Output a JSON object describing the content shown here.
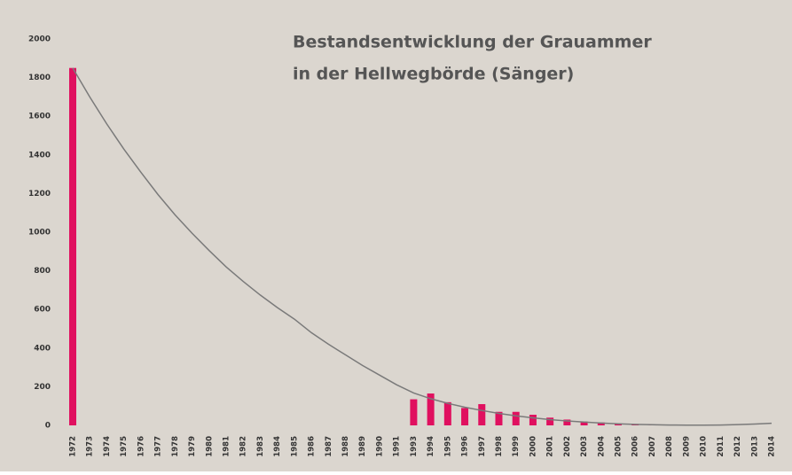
{
  "chart_data": {
    "type": "bar",
    "title_lines": [
      "Bestandsentwicklung der Grauammer",
      "in der Hellwegbörde (Sänger)"
    ],
    "categories": [
      "1972",
      "1973",
      "1974",
      "1975",
      "1976",
      "1977",
      "1978",
      "1979",
      "1980",
      "1981",
      "1982",
      "1983",
      "1984",
      "1985",
      "1986",
      "1987",
      "1988",
      "1989",
      "1990",
      "1991",
      "1993",
      "1994",
      "1995",
      "1996",
      "1997",
      "1998",
      "1999",
      "2000",
      "2001",
      "2002",
      "2003",
      "2004",
      "2005",
      "2006",
      "2007",
      "2008",
      "2009",
      "2010",
      "2011",
      "2012",
      "2013",
      "2014"
    ],
    "series": [
      {
        "type": "bar",
        "color": "#e0105f",
        "values": [
          1850,
          null,
          null,
          null,
          null,
          null,
          null,
          null,
          null,
          null,
          null,
          null,
          null,
          null,
          null,
          null,
          null,
          null,
          null,
          null,
          135,
          165,
          120,
          90,
          110,
          70,
          70,
          55,
          40,
          30,
          20,
          15,
          10,
          5,
          2,
          null,
          null,
          null,
          null,
          null,
          null,
          null
        ]
      },
      {
        "type": "line",
        "color": "#7a7a7a",
        "values": [
          1850,
          1700,
          1560,
          1430,
          1310,
          1195,
          1090,
          995,
          905,
          820,
          745,
          675,
          610,
          550,
          480,
          420,
          365,
          310,
          260,
          210,
          168,
          138,
          114,
          94,
          77,
          62,
          49,
          39,
          30,
          23,
          17,
          12,
          8,
          5,
          3,
          2,
          1,
          1,
          2,
          4,
          7,
          11
        ]
      }
    ],
    "ylim": [
      0,
      2000
    ],
    "yticks": [
      0,
      200,
      400,
      600,
      800,
      1000,
      1200,
      1400,
      1600,
      1800,
      2000
    ],
    "background": "#dbd6cf"
  }
}
